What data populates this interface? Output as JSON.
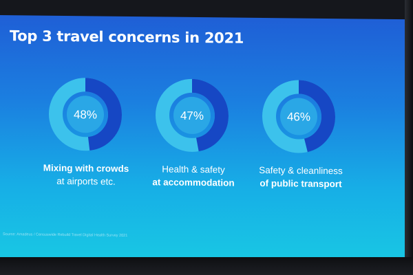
{
  "title": "Top 3 travel concerns in 2021",
  "source": "Source: Amadeus / Censuswide Rebuild Travel Digital Health Survey 2021",
  "colors": {
    "ring_fill": "#1647c4",
    "ring_track": "#3cc2ec",
    "center": "#2aa7e6",
    "text": "#ffffff"
  },
  "chart_data": {
    "type": "pie",
    "title": "Top 3 travel concerns in 2021",
    "items": [
      {
        "value": 48,
        "value_label": "48%",
        "label_line1": "Mixing with crowds",
        "label_line2": "at airports etc.",
        "bold_line": 1
      },
      {
        "value": 47,
        "value_label": "47%",
        "label_line1": "Health & safety",
        "label_line2": "at accommodation",
        "bold_line": 2
      },
      {
        "value": 46,
        "value_label": "46%",
        "label_line1": "Safety & cleanliness",
        "label_line2": "of public transport",
        "bold_line": 2
      }
    ]
  }
}
